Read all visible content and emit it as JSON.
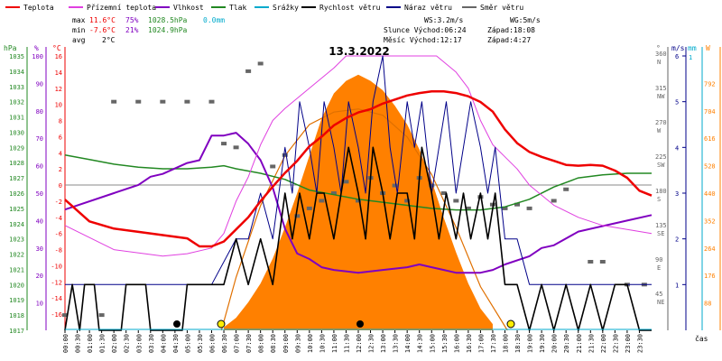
{
  "legend": [
    {
      "label": "Teplota",
      "color": "#ee0000"
    },
    {
      "label": "Přízemní teplota",
      "color": "#e040e0"
    },
    {
      "label": "Vlhkost",
      "color": "#8000c0"
    },
    {
      "label": "Tlak",
      "color": "#228822"
    },
    {
      "label": "Srážky",
      "color": "#00aacc"
    },
    {
      "label": "Rychlost větru",
      "color": "#000000"
    },
    {
      "label": "Náraz větru",
      "color": "#000088"
    },
    {
      "label": "Směr větru",
      "color": "#666666"
    }
  ],
  "stats": {
    "max_label": "max",
    "max_temp": "11.6°C",
    "max_hum": "75%",
    "max_press": "1028.5hPa",
    "max_rain": "0.0mm",
    "min_label": "min",
    "min_temp": "-7.6°C",
    "min_hum": "21%",
    "min_press": "1024.9hPa",
    "avg_label": "avg",
    "avg_temp": "2°C"
  },
  "astro": {
    "ws": "WS:3.2m/s",
    "wg": "WG:5m/s",
    "sun": "Slunce Východ:06:24",
    "sunset": "Západ:18:08",
    "moon": "Měsíc  Východ:12:17",
    "moonset": "Západ:4:27"
  },
  "colors": {
    "temp": "#ee0000",
    "dew": "#e040e0",
    "hum": "#8000c0",
    "press": "#228822",
    "rain": "#00aacc",
    "wind": "#000000",
    "gust": "#000088",
    "dir": "#666666",
    "solar": "#ff8000",
    "solar_theory": "#e07000"
  },
  "chart_data": {
    "type": "line",
    "title": "13.3.2022",
    "xlabel": "čas",
    "x_ticks": [
      "00:00",
      "00:30",
      "01:00",
      "01:30",
      "02:00",
      "02:30",
      "03:00",
      "03:30",
      "04:00",
      "04:30",
      "05:00",
      "05:30",
      "06:00",
      "06:30",
      "07:00",
      "07:30",
      "08:00",
      "08:30",
      "09:00",
      "09:30",
      "10:00",
      "10:30",
      "11:00",
      "11:30",
      "12:00",
      "12:30",
      "13:00",
      "13:30",
      "14:00",
      "14:30",
      "15:00",
      "15:30",
      "16:00",
      "16:30",
      "17:00",
      "17:30",
      "18:00",
      "18:30",
      "19:00",
      "19:30",
      "20:00",
      "20:30",
      "21:00",
      "21:30",
      "22:00",
      "22:30",
      "23:00",
      "23:30"
    ],
    "axes": {
      "pressure": {
        "unit": "hPa",
        "range": [
          1017,
          1035
        ],
        "ticks": [
          1017,
          1018,
          1019,
          1020,
          1021,
          1022,
          1023,
          1024,
          1025,
          1026,
          1027,
          1028,
          1029,
          1030,
          1031,
          1032,
          1033,
          1034,
          1035
        ]
      },
      "humidity": {
        "unit": "%",
        "range": [
          0,
          100
        ],
        "ticks": [
          10,
          20,
          30,
          40,
          50,
          60,
          70,
          80,
          90,
          100
        ]
      },
      "temperature": {
        "unit": "°C",
        "range": [
          -18,
          16
        ],
        "ticks": [
          -16,
          -14,
          -12,
          -10,
          -8,
          -6,
          -4,
          -2,
          0,
          2,
          4,
          6,
          8,
          10,
          12,
          14,
          16
        ]
      },
      "direction": {
        "unit": "°",
        "range": [
          0,
          360
        ],
        "ticks": [
          {
            "v": 45,
            "l": "NE"
          },
          {
            "v": 90,
            "l": "E"
          },
          {
            "v": 135,
            "l": "SE"
          },
          {
            "v": 180,
            "l": "S"
          },
          {
            "v": 225,
            "l": "SW"
          },
          {
            "v": 270,
            "l": "W"
          },
          {
            "v": 315,
            "l": "NW"
          },
          {
            "v": 360,
            "l": "N"
          }
        ]
      },
      "wind": {
        "unit": "m/s",
        "range": [
          0,
          6
        ],
        "ticks": [
          1,
          2,
          3,
          4,
          5,
          6
        ]
      },
      "rain": {
        "unit": "mm",
        "ticks": [
          1
        ]
      },
      "solar": {
        "unit": "W",
        "range": [
          0,
          880
        ],
        "ticks": [
          88,
          176,
          264,
          352,
          440,
          528,
          616,
          704,
          792
        ]
      }
    },
    "series": [
      {
        "name": "Teplota",
        "axis": "temperature",
        "x": [
          0,
          1,
          2,
          3,
          4,
          5,
          5.5,
          6,
          6.5,
          7,
          7.5,
          8,
          8.5,
          9,
          9.5,
          10,
          10.5,
          11,
          11.5,
          12,
          12.5,
          13,
          13.5,
          14,
          14.5,
          15,
          15.5,
          16,
          16.5,
          17,
          17.5,
          18,
          18.5,
          19,
          19.5,
          20,
          20.5,
          21,
          21.5,
          22,
          22.5,
          23,
          23.5,
          24
        ],
        "values": [
          -1.8,
          -4.5,
          -5.4,
          -5.8,
          -6.2,
          -6.6,
          -7.6,
          -7.6,
          -7.0,
          -5.5,
          -4.0,
          -2.0,
          -0.2,
          1.5,
          3.0,
          4.8,
          6.0,
          7.4,
          8.3,
          9.0,
          9.4,
          10.1,
          10.6,
          11.1,
          11.4,
          11.6,
          11.6,
          11.4,
          11.0,
          10.3,
          9.1,
          6.9,
          5.2,
          4.1,
          3.5,
          3.0,
          2.5,
          2.4,
          2.5,
          2.4,
          1.8,
          0.9,
          -0.7,
          -1.3
        ]
      },
      {
        "name": "Přízemní teplota",
        "axis": "temperature",
        "x": [
          0,
          2,
          4,
          5,
          6,
          6.5,
          7,
          7.5,
          8,
          8.5,
          9,
          10,
          11,
          11.5,
          12,
          13,
          14,
          15,
          15.2,
          16,
          16.5,
          17,
          17.5,
          18,
          18.5,
          19,
          20,
          21,
          21.5,
          22,
          23,
          24
        ],
        "values": [
          -5.0,
          -8.0,
          -8.8,
          -8.5,
          -7.8,
          -6.0,
          -2.0,
          1.0,
          5.0,
          8.0,
          9.5,
          12.0,
          14.5,
          16,
          16,
          16,
          16,
          16,
          16,
          14,
          12,
          8,
          5,
          3.5,
          2.0,
          0.0,
          -2.5,
          -4.0,
          -4.5,
          -5.0,
          -5.5,
          -6.0
        ]
      },
      {
        "name": "Vlhkost",
        "axis": "humidity",
        "x": [
          0,
          2,
          3,
          3.5,
          4,
          5,
          5.5,
          6,
          6.5,
          7,
          7.5,
          8,
          8.5,
          9,
          9.5,
          10,
          10.5,
          11,
          12,
          13,
          14,
          14.5,
          15,
          15.5,
          16,
          17,
          17.5,
          18,
          19,
          19.5,
          20,
          21,
          22,
          23,
          24
        ],
        "values": [
          44,
          50,
          53,
          56,
          57,
          61,
          62,
          71,
          71,
          72,
          68,
          62,
          52,
          37,
          28,
          26,
          23,
          22,
          21,
          22,
          23,
          24,
          23,
          22,
          21,
          21,
          22,
          24,
          27,
          30,
          31,
          36,
          38,
          40,
          42
        ]
      },
      {
        "name": "Tlak",
        "axis": "pressure",
        "x": [
          0,
          1,
          2,
          3,
          4,
          5,
          6,
          6.5,
          7,
          8,
          9,
          10,
          11,
          12,
          13,
          14,
          15,
          16,
          17,
          18,
          19,
          20,
          21,
          22,
          23,
          24
        ],
        "values": [
          1028.5,
          1028.2,
          1027.9,
          1027.7,
          1027.6,
          1027.6,
          1027.7,
          1027.8,
          1027.6,
          1027.3,
          1026.9,
          1026.2,
          1025.9,
          1025.6,
          1025.4,
          1025.2,
          1025.0,
          1024.9,
          1024.9,
          1025.1,
          1025.6,
          1026.4,
          1027.0,
          1027.2,
          1027.3,
          1027.3
        ]
      },
      {
        "name": "Rychlost větru",
        "axis": "wind",
        "x": [
          0,
          0.3,
          0.6,
          0.8,
          1.2,
          1.4,
          2.3,
          2.5,
          3.3,
          3.5,
          4.8,
          5.0,
          6.5,
          7.0,
          7.5,
          8.0,
          8.5,
          9.0,
          9.3,
          9.6,
          10.0,
          10.3,
          10.6,
          11.0,
          11.3,
          11.6,
          12.0,
          12.3,
          12.6,
          13.0,
          13.3,
          13.6,
          14.0,
          14.3,
          14.6,
          15.0,
          15.3,
          15.6,
          16.0,
          16.3,
          16.6,
          17.0,
          17.3,
          17.6,
          18.0,
          18.5,
          19.0,
          19.5,
          20.0,
          20.5,
          21.0,
          21.5,
          22.0,
          22.5,
          23.0,
          23.5,
          24.0
        ],
        "values": [
          0,
          1,
          0,
          1,
          1,
          0,
          0,
          1,
          1,
          0,
          0,
          1,
          1,
          2,
          1,
          2,
          1,
          3,
          2,
          3,
          2,
          3,
          3,
          2,
          3,
          4,
          3,
          2,
          4,
          3,
          2,
          3,
          3,
          2,
          4,
          3,
          2,
          3,
          2,
          3,
          2,
          3,
          2,
          3,
          1,
          1,
          0,
          1,
          0,
          1,
          0,
          1,
          0,
          1,
          1,
          0,
          0
        ]
      },
      {
        "name": "Náraz větru",
        "axis": "wind",
        "x": [
          0,
          1,
          2,
          3,
          4,
          5,
          6,
          7,
          7.5,
          8,
          8.5,
          9,
          9.3,
          9.6,
          10,
          10.3,
          10.6,
          11,
          11.3,
          11.6,
          12,
          12.3,
          12.6,
          13,
          13.3,
          13.6,
          14,
          14.3,
          14.6,
          15,
          15.3,
          15.6,
          16,
          16.3,
          16.6,
          17,
          17.3,
          17.6,
          18,
          18.5,
          19,
          20,
          21,
          22,
          23,
          24
        ],
        "values": [
          1,
          1,
          1,
          1,
          1,
          1,
          1,
          2,
          2,
          3,
          2,
          4,
          3,
          5,
          4,
          3,
          5,
          4,
          3,
          5,
          4,
          3,
          5,
          6,
          4,
          3,
          5,
          4,
          5,
          3,
          4,
          5,
          3,
          4,
          5,
          4,
          3,
          4,
          2,
          2,
          1,
          1,
          1,
          1,
          1,
          1
        ]
      },
      {
        "name": "Srážky",
        "axis": "rain",
        "x": [
          0,
          24
        ],
        "values": [
          0,
          0
        ]
      },
      {
        "name": "Sluneční svit",
        "axis": "solar",
        "x": [
          6.5,
          7,
          7.5,
          8,
          8.5,
          9,
          9.5,
          10,
          10.5,
          11,
          11.5,
          12,
          12.5,
          13,
          13.5,
          14,
          14.5,
          15,
          15.5,
          16,
          16.5,
          17,
          17.5
        ],
        "values": [
          10,
          40,
          90,
          150,
          230,
          330,
          440,
          560,
          680,
          760,
          800,
          820,
          800,
          770,
          720,
          660,
          580,
          480,
          360,
          250,
          150,
          70,
          20
        ]
      },
      {
        "name": "Teoretický svit",
        "axis": "solar",
        "x": [
          6.4,
          7,
          8,
          9,
          10,
          11,
          12,
          13,
          14,
          15,
          16,
          17,
          18.1
        ],
        "values": [
          0,
          170,
          400,
          560,
          660,
          700,
          710,
          690,
          620,
          500,
          330,
          140,
          0
        ]
      },
      {
        "name": "Směr větru",
        "axis": "direction",
        "x": [
          0,
          1.5,
          2.0,
          3.0,
          4.0,
          5.0,
          6.0,
          6.5,
          7.0,
          7.5,
          8.0,
          8.5,
          9.0,
          9.5,
          10.0,
          10.5,
          11.0,
          11.5,
          12.0,
          12.5,
          13.0,
          13.5,
          14.0,
          14.5,
          15.0,
          15.5,
          16.0,
          16.5,
          17.0,
          17.5,
          18.0,
          18.5,
          19.0,
          20.0,
          20.5,
          21.5,
          22.0,
          23.0,
          23.7
        ],
        "values": [
          20,
          20,
          300,
          300,
          300,
          300,
          300,
          245,
          240,
          340,
          350,
          215,
          230,
          150,
          160,
          170,
          180,
          195,
          170,
          200,
          180,
          190,
          170,
          200,
          190,
          180,
          170,
          160,
          175,
          165,
          160,
          165,
          160,
          170,
          185,
          90,
          90,
          60,
          60
        ]
      }
    ]
  }
}
